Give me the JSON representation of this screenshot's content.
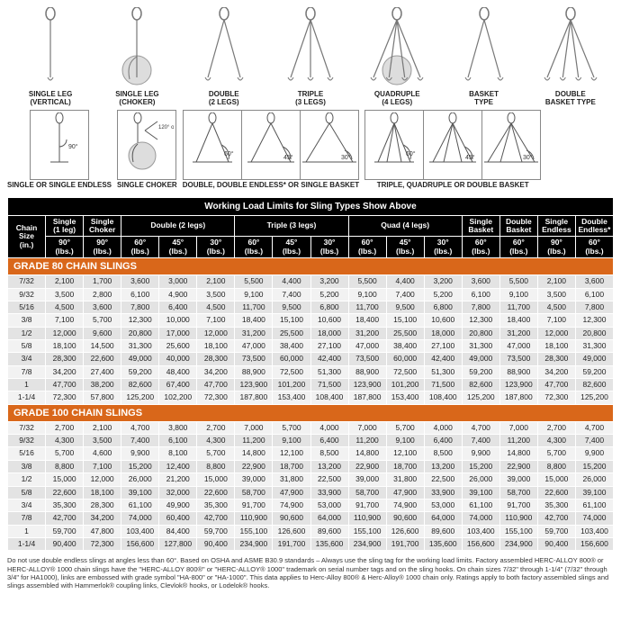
{
  "diagrams": [
    {
      "label": "SINGLE LEG\n(VERTICAL)"
    },
    {
      "label": "SINGLE LEG\n(CHOKER)"
    },
    {
      "label": "DOUBLE\n(2 LEGS)"
    },
    {
      "label": "TRIPLE\n(3 LEGS)"
    },
    {
      "label": "QUADRUPLE\n(4 LEGS)"
    },
    {
      "label": "BASKET\nTYPE"
    },
    {
      "label": "DOUBLE\nBASKET TYPE"
    }
  ],
  "angle_captions": {
    "single": "SINGLE OR\nSINGLE ENDLESS",
    "choker": "SINGLE\nCHOKER",
    "doublegrp": "DOUBLE, DOUBLE ENDLESS*\nOR SINGLE BASKET",
    "quadgrp": "TRIPLE, QUADRUPLE\nOR DOUBLE BASKET",
    "choker_txt": "120°\nor\ngreater"
  },
  "table": {
    "title": "Working Load Limits for Sling Types Show Above",
    "top_headers": [
      {
        "label": "Chain Size\n(in.)",
        "rowspan": 2,
        "class": "col-chain"
      },
      {
        "label": "Single\n(1 leg)",
        "colspan": 1
      },
      {
        "label": "Single\nChoker",
        "colspan": 1
      },
      {
        "label": "Double (2 legs)",
        "colspan": 3
      },
      {
        "label": "Triple (3 legs)",
        "colspan": 3
      },
      {
        "label": "Quad (4 legs)",
        "colspan": 3
      },
      {
        "label": "Single\nBasket",
        "colspan": 1
      },
      {
        "label": "Double\nBasket",
        "colspan": 1
      },
      {
        "label": "Single\nEndless",
        "colspan": 1
      },
      {
        "label": "Double\nEndless*",
        "colspan": 1
      }
    ],
    "sub_headers": [
      "90°\n(lbs.)",
      "90°\n(lbs.)",
      "60°\n(lbs.)",
      "45°\n(lbs.)",
      "30°\n(lbs.)",
      "60°\n(lbs.)",
      "45°\n(lbs.)",
      "30°\n(lbs.)",
      "60°\n(lbs.)",
      "45°\n(lbs.)",
      "30°\n(lbs.)",
      "60°\n(lbs.)",
      "60°\n(lbs.)",
      "90°\n(lbs.)",
      "60°\n(lbs.)"
    ],
    "grade80_label": "GRADE 80 CHAIN SLINGS",
    "grade80": [
      [
        "7/32",
        "2,100",
        "1,700",
        "3,600",
        "3,000",
        "2,100",
        "5,500",
        "4,400",
        "3,200",
        "5,500",
        "4,400",
        "3,200",
        "3,600",
        "5,500",
        "2,100",
        "3,600"
      ],
      [
        "9/32",
        "3,500",
        "2,800",
        "6,100",
        "4,900",
        "3,500",
        "9,100",
        "7,400",
        "5,200",
        "9,100",
        "7,400",
        "5,200",
        "6,100",
        "9,100",
        "3,500",
        "6,100"
      ],
      [
        "5/16",
        "4,500",
        "3,600",
        "7,800",
        "6,400",
        "4,500",
        "11,700",
        "9,500",
        "6,800",
        "11,700",
        "9,500",
        "6,800",
        "7,800",
        "11,700",
        "4,500",
        "7,800"
      ],
      [
        "3/8",
        "7,100",
        "5,700",
        "12,300",
        "10,000",
        "7,100",
        "18,400",
        "15,100",
        "10,600",
        "18,400",
        "15,100",
        "10,600",
        "12,300",
        "18,400",
        "7,100",
        "12,300"
      ],
      [
        "1/2",
        "12,000",
        "9,600",
        "20,800",
        "17,000",
        "12,000",
        "31,200",
        "25,500",
        "18,000",
        "31,200",
        "25,500",
        "18,000",
        "20,800",
        "31,200",
        "12,000",
        "20,800"
      ],
      [
        "5/8",
        "18,100",
        "14,500",
        "31,300",
        "25,600",
        "18,100",
        "47,000",
        "38,400",
        "27,100",
        "47,000",
        "38,400",
        "27,100",
        "31,300",
        "47,000",
        "18,100",
        "31,300"
      ],
      [
        "3/4",
        "28,300",
        "22,600",
        "49,000",
        "40,000",
        "28,300",
        "73,500",
        "60,000",
        "42,400",
        "73,500",
        "60,000",
        "42,400",
        "49,000",
        "73,500",
        "28,300",
        "49,000"
      ],
      [
        "7/8",
        "34,200",
        "27,400",
        "59,200",
        "48,400",
        "34,200",
        "88,900",
        "72,500",
        "51,300",
        "88,900",
        "72,500",
        "51,300",
        "59,200",
        "88,900",
        "34,200",
        "59,200"
      ],
      [
        "1",
        "47,700",
        "38,200",
        "82,600",
        "67,400",
        "47,700",
        "123,900",
        "101,200",
        "71,500",
        "123,900",
        "101,200",
        "71,500",
        "82,600",
        "123,900",
        "47,700",
        "82,600"
      ],
      [
        "1-1/4",
        "72,300",
        "57,800",
        "125,200",
        "102,200",
        "72,300",
        "187,800",
        "153,400",
        "108,400",
        "187,800",
        "153,400",
        "108,400",
        "125,200",
        "187,800",
        "72,300",
        "125,200"
      ]
    ],
    "grade100_label": "GRADE 100 CHAIN SLINGS",
    "grade100": [
      [
        "7/32",
        "2,700",
        "2,100",
        "4,700",
        "3,800",
        "2,700",
        "7,000",
        "5,700",
        "4,000",
        "7,000",
        "5,700",
        "4,000",
        "4,700",
        "7,000",
        "2,700",
        "4,700"
      ],
      [
        "9/32",
        "4,300",
        "3,500",
        "7,400",
        "6,100",
        "4,300",
        "11,200",
        "9,100",
        "6,400",
        "11,200",
        "9,100",
        "6,400",
        "7,400",
        "11,200",
        "4,300",
        "7,400"
      ],
      [
        "5/16",
        "5,700",
        "4,600",
        "9,900",
        "8,100",
        "5,700",
        "14,800",
        "12,100",
        "8,500",
        "14,800",
        "12,100",
        "8,500",
        "9,900",
        "14,800",
        "5,700",
        "9,900"
      ],
      [
        "3/8",
        "8,800",
        "7,100",
        "15,200",
        "12,400",
        "8,800",
        "22,900",
        "18,700",
        "13,200",
        "22,900",
        "18,700",
        "13,200",
        "15,200",
        "22,900",
        "8,800",
        "15,200"
      ],
      [
        "1/2",
        "15,000",
        "12,000",
        "26,000",
        "21,200",
        "15,000",
        "39,000",
        "31,800",
        "22,500",
        "39,000",
        "31,800",
        "22,500",
        "26,000",
        "39,000",
        "15,000",
        "26,000"
      ],
      [
        "5/8",
        "22,600",
        "18,100",
        "39,100",
        "32,000",
        "22,600",
        "58,700",
        "47,900",
        "33,900",
        "58,700",
        "47,900",
        "33,900",
        "39,100",
        "58,700",
        "22,600",
        "39,100"
      ],
      [
        "3/4",
        "35,300",
        "28,300",
        "61,100",
        "49,900",
        "35,300",
        "91,700",
        "74,900",
        "53,000",
        "91,700",
        "74,900",
        "53,000",
        "61,100",
        "91,700",
        "35,300",
        "61,100"
      ],
      [
        "7/8",
        "42,700",
        "34,200",
        "74,000",
        "60,400",
        "42,700",
        "110,900",
        "90,600",
        "64,000",
        "110,900",
        "90,600",
        "64,000",
        "74,000",
        "110,900",
        "42,700",
        "74,000"
      ],
      [
        "1",
        "59,700",
        "47,800",
        "103,400",
        "84,400",
        "59,700",
        "155,100",
        "126,600",
        "89,600",
        "155,100",
        "126,600",
        "89,600",
        "103,400",
        "155,100",
        "59,700",
        "103,400"
      ],
      [
        "1-1/4",
        "90,400",
        "72,300",
        "156,600",
        "127,800",
        "90,400",
        "234,900",
        "191,700",
        "135,600",
        "234,900",
        "191,700",
        "135,600",
        "156,600",
        "234,900",
        "90,400",
        "156,600"
      ]
    ]
  },
  "footnote": "Do not use double endless slings at angles less than 60°. Based on OSHA and ASME B30.9 standards – Always use the sling tag for the working load limits. Factory assembled HERC-ALLOY 800® or HERC-ALLOY® 1000 chain slings have the \"HERC-ALLOY 800®\" or \"HERC-ALLOY® 1000\" trademark on serial number tags and on the sling hooks. On chain sizes 7/32\" through 1-1/4\" (7/32\" through 3/4\" for HA1000), links are embossed with grade symbol \"HA-800\" or \"HA-1000\". This data applies to Herc-Alloy 800® & Herc-Alloy® 1000 chain only. Ratings apply to both factory assembled slings and slings assembled with Hammerlok® coupling links, Clevlok® hooks, or Lodelok® hooks."
}
